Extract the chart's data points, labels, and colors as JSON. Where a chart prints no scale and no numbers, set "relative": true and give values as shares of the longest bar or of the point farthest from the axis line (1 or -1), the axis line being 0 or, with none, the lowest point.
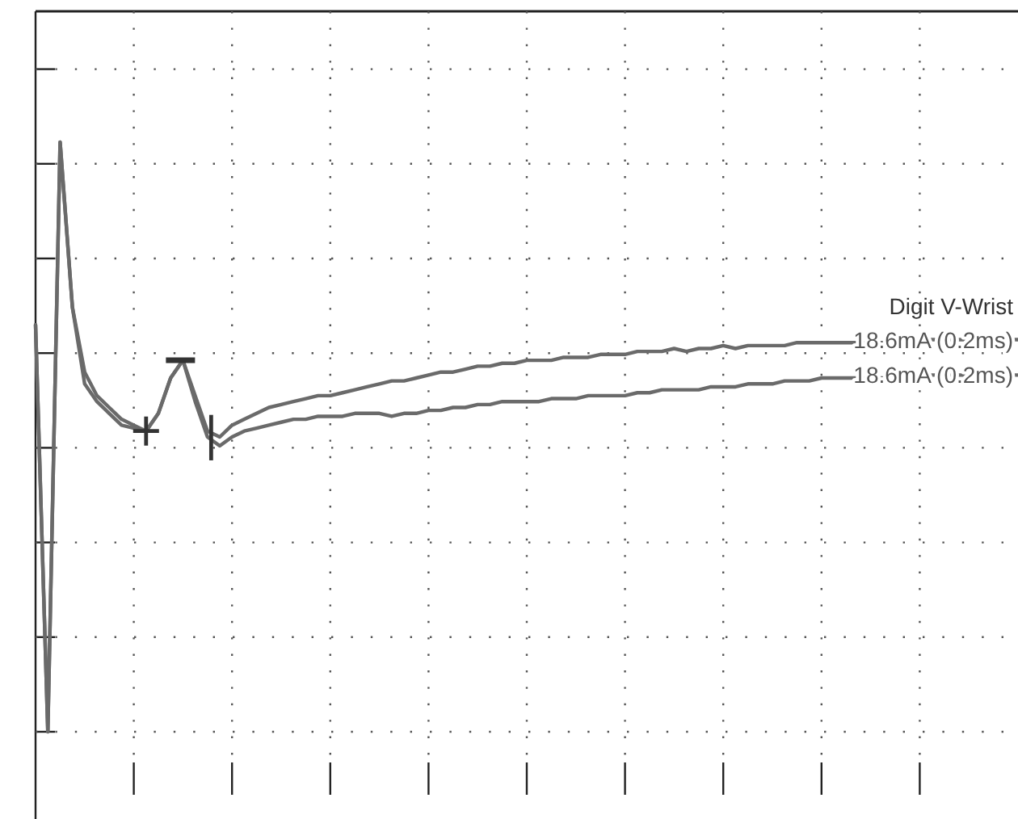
{
  "chart_data": {
    "type": "line",
    "relative": true,
    "grid": true,
    "line_style": "solid",
    "annotations": [
      "Digit V-Wrist"
    ],
    "categories": [
      null,
      null,
      null,
      null,
      null,
      null,
      null,
      null,
      null,
      null,
      null,
      null,
      null,
      null,
      null,
      null,
      null,
      null,
      null,
      null,
      null,
      null,
      null,
      null,
      null,
      null,
      null,
      null,
      null,
      null,
      null,
      null,
      null,
      null,
      null,
      null,
      null,
      null,
      null,
      null,
      null,
      null,
      null,
      null,
      null,
      null,
      null,
      null,
      null,
      null,
      null,
      null,
      null,
      null,
      null,
      null,
      null,
      null,
      null,
      null,
      null,
      null,
      null,
      null,
      null,
      null,
      null,
      null,
      null,
      null,
      null,
      null,
      null,
      null,
      null,
      null,
      null,
      null,
      null,
      null,
      null
    ],
    "series": [
      {
        "name": "18.6mA (0.2ms)",
        "color": "#6a6a6a",
        "values": [
          0.69,
          0,
          1,
          0.72,
          0.61,
          0.57,
          0.55,
          0.53,
          0.52,
          0.51,
          0.54,
          0.6,
          0.63,
          0.57,
          0.51,
          0.5,
          0.52,
          0.53,
          0.54,
          0.55,
          0.555,
          0.56,
          0.565,
          0.57,
          0.57,
          0.575,
          0.58,
          0.585,
          0.59,
          0.595,
          0.595,
          0.6,
          0.605,
          0.61,
          0.61,
          0.615,
          0.62,
          0.62,
          0.625,
          0.625,
          0.63,
          0.63,
          0.63,
          0.635,
          0.635,
          0.635,
          0.64,
          0.64,
          0.64,
          0.645,
          0.645,
          0.645,
          0.65,
          0.645,
          0.65,
          0.65,
          0.655,
          0.65,
          0.655,
          0.655,
          0.655,
          0.655,
          0.66,
          0.66,
          0.66,
          0.66,
          0.66,
          0.66,
          0.66,
          0.66,
          0.665,
          0.665,
          0.665,
          0.665,
          0.665,
          0.665,
          0.665,
          0.665,
          0.665,
          0.665,
          0.665
        ]
      },
      {
        "name": "18.6mA (0.2ms)",
        "color": "#6a6a6a",
        "values": [
          0.69,
          0,
          1,
          0.72,
          0.59,
          0.56,
          0.54,
          0.52,
          0.515,
          0.51,
          0.54,
          0.6,
          0.63,
          0.56,
          0.5,
          0.485,
          0.5,
          0.51,
          0.515,
          0.52,
          0.525,
          0.53,
          0.53,
          0.535,
          0.535,
          0.535,
          0.54,
          0.54,
          0.54,
          0.535,
          0.54,
          0.54,
          0.545,
          0.545,
          0.55,
          0.55,
          0.555,
          0.555,
          0.56,
          0.56,
          0.56,
          0.56,
          0.565,
          0.565,
          0.565,
          0.57,
          0.57,
          0.57,
          0.57,
          0.575,
          0.575,
          0.58,
          0.58,
          0.58,
          0.58,
          0.585,
          0.585,
          0.585,
          0.59,
          0.59,
          0.59,
          0.595,
          0.595,
          0.595,
          0.6,
          0.6,
          0.6,
          0.6,
          0.6,
          0.6,
          0.6,
          0.6,
          0.605,
          0.605,
          0.605,
          0.605,
          0.605,
          0.605,
          0.605,
          0.605,
          0.605
        ]
      }
    ]
  }
}
